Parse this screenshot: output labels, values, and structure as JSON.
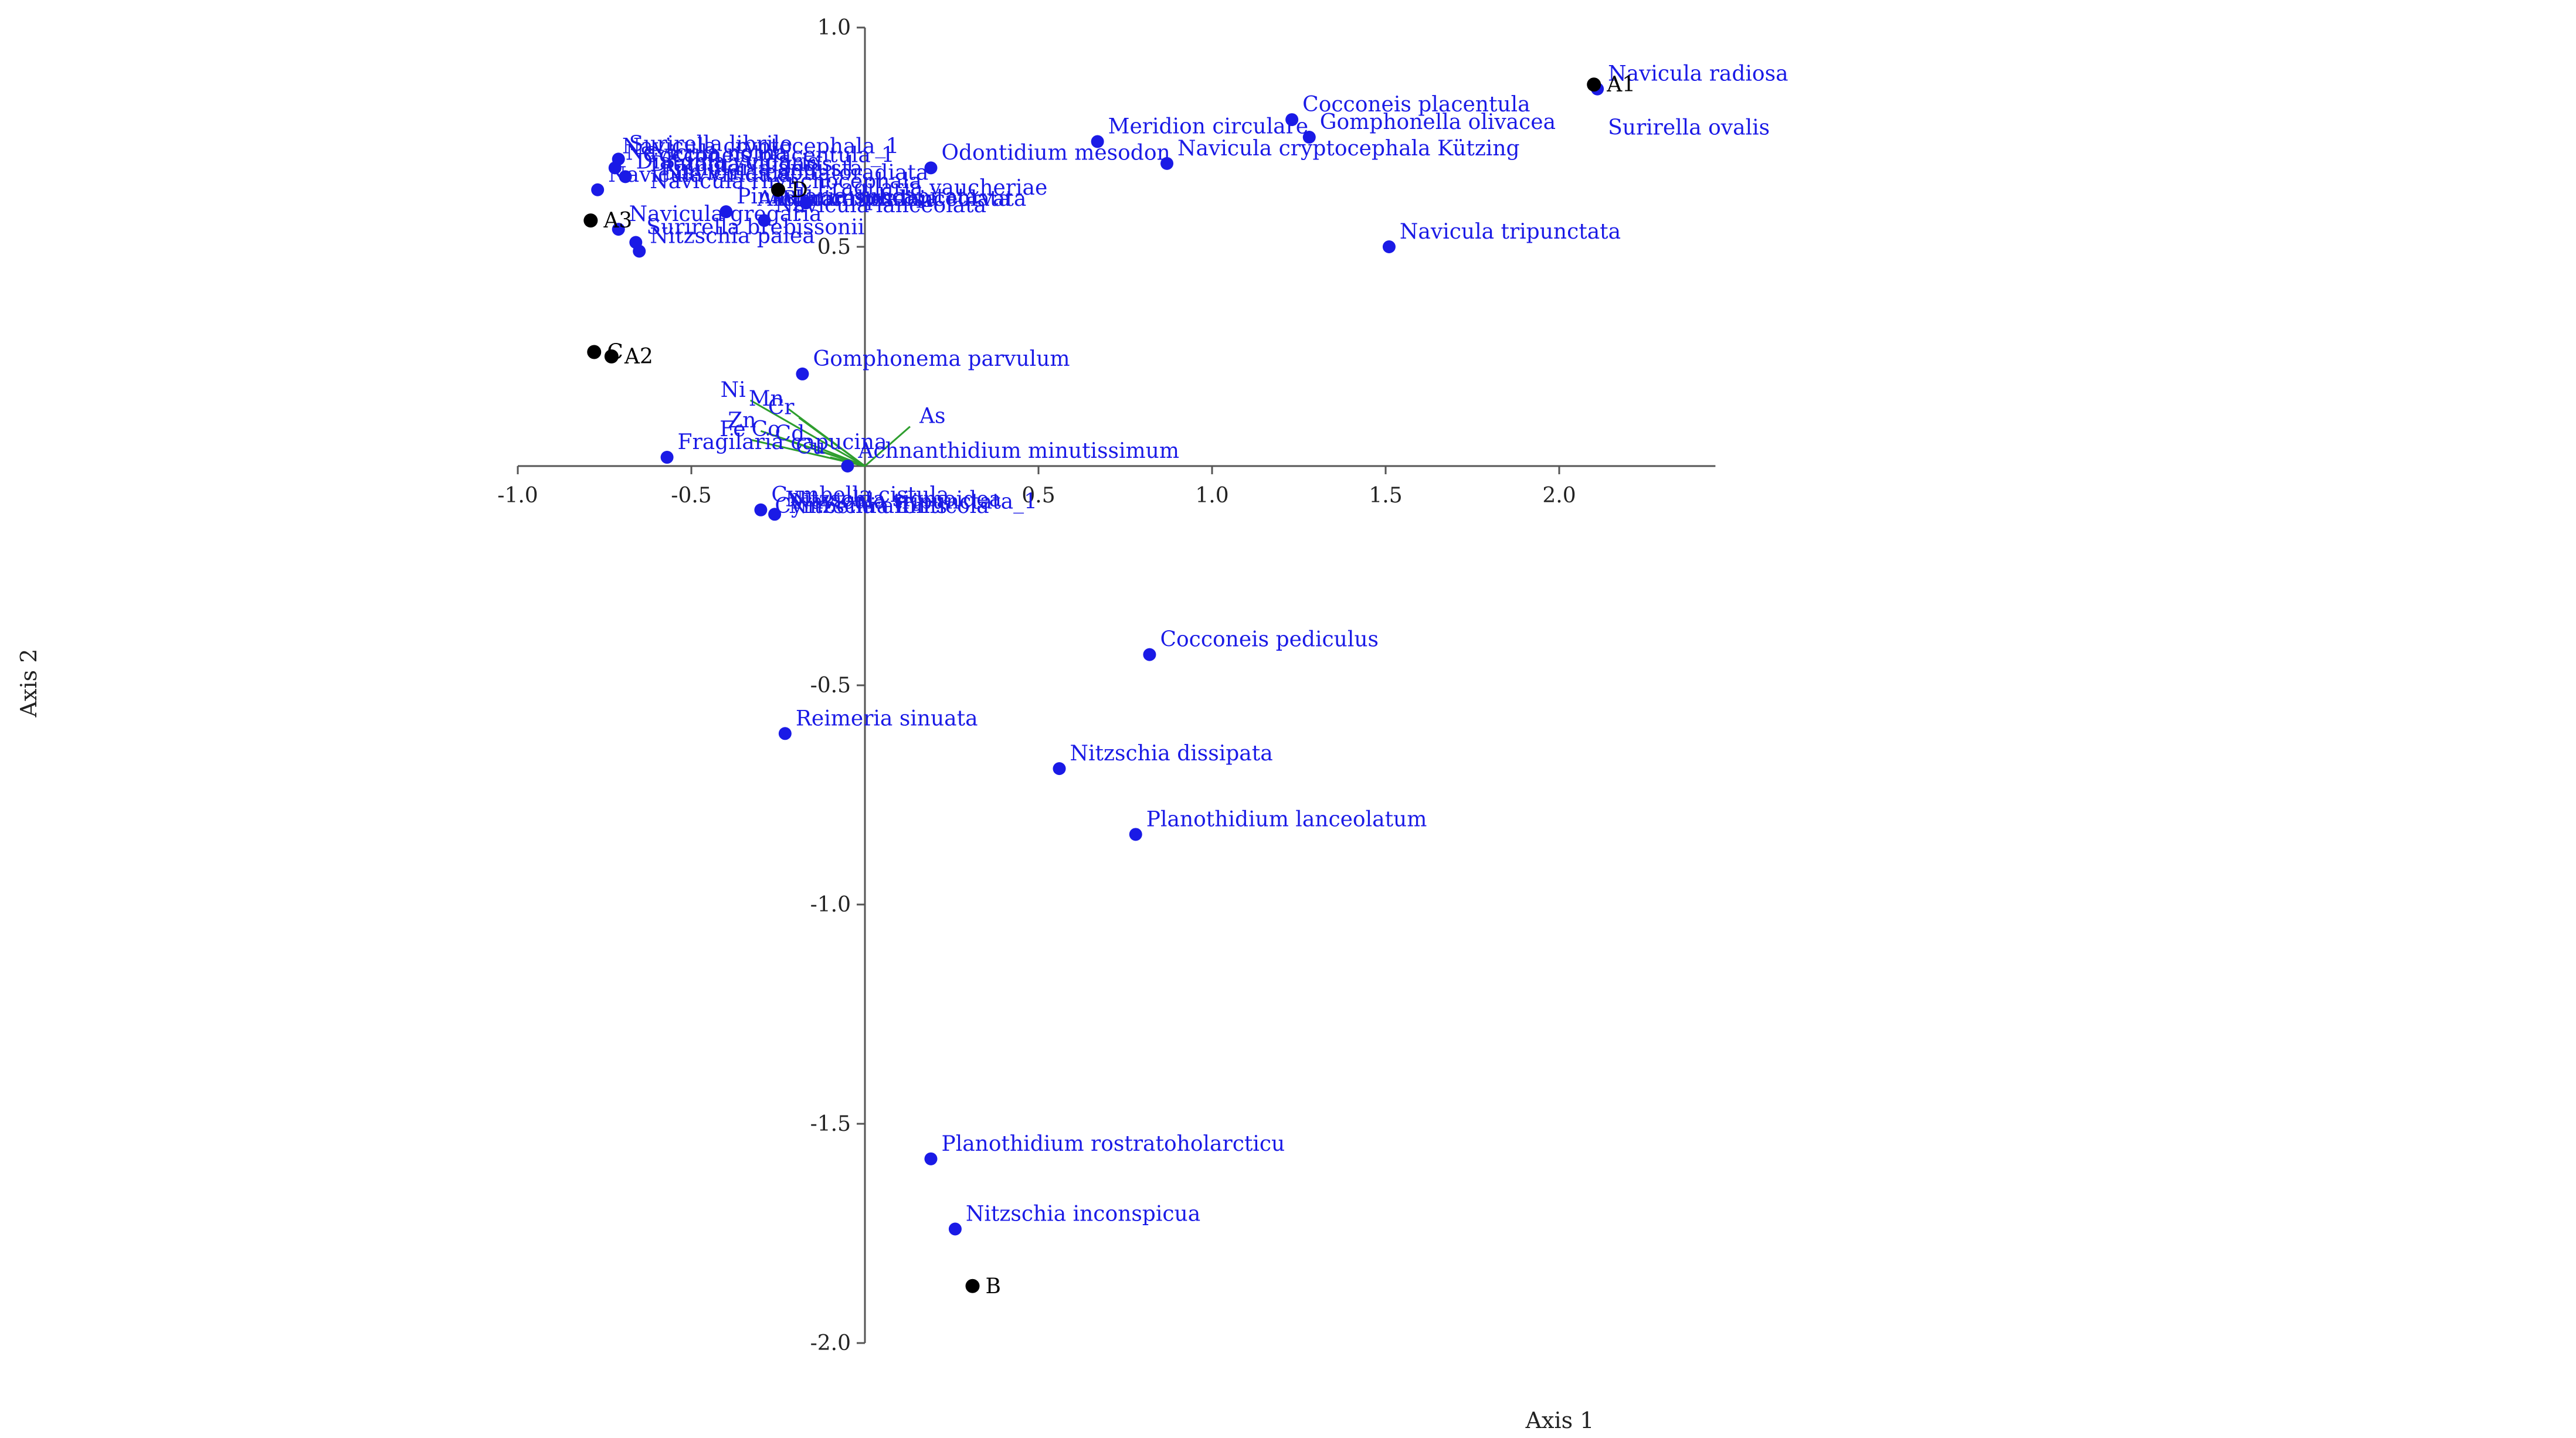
{
  "chart_data": {
    "type": "scatter",
    "title": "",
    "xlabel": "Axis 1",
    "ylabel": "Axis 2",
    "xlim": [
      -1.0,
      2.45
    ],
    "ylim": [
      -2.0,
      1.0
    ],
    "x_ticks": [
      -1.0,
      -0.5,
      0.5,
      1.0,
      1.5,
      2.0
    ],
    "x_tick_labels": [
      "-1.0",
      "-0.5",
      "0.5",
      "1.0",
      "1.5",
      "2.0"
    ],
    "y_ticks": [
      1.0,
      0.5,
      -0.5,
      -1.0,
      -1.5,
      -2.0
    ],
    "y_tick_labels": [
      "1.0",
      "0.5",
      "-0.5",
      "-1.0",
      "-1.5",
      "-2.0"
    ],
    "grid": false,
    "colors": {
      "species": "#1a1ae6",
      "sites": "#000000",
      "env": "#2e9e2e",
      "axis": "#555555"
    },
    "species": [
      {
        "name": "Navicula radiosa",
        "x": 2.11,
        "y": 0.86
      },
      {
        "name": "Surirella ovalis",
        "x": 2.11,
        "y": 0.86
      },
      {
        "name": "Cocconeis placentula",
        "x": 1.23,
        "y": 0.79
      },
      {
        "name": "Gomphonella olivacea",
        "x": 1.28,
        "y": 0.75
      },
      {
        "name": "Meridion circulare",
        "x": 0.67,
        "y": 0.74
      },
      {
        "name": "Navicula cryptocephala Kützing",
        "x": 0.87,
        "y": 0.69
      },
      {
        "name": "Odontidium mesodon",
        "x": 0.19,
        "y": 0.68
      },
      {
        "name": "Navicula tripunctata",
        "x": 1.51,
        "y": 0.5
      },
      {
        "name": "Fragilaria vaucheriae",
        "x": -0.17,
        "y": 0.6
      },
      {
        "name": "Navicula lanceolata",
        "x": -0.29,
        "y": 0.56
      },
      {
        "name": "Surirella librile",
        "x": -0.71,
        "y": 0.7
      },
      {
        "name": "Navicula notha",
        "x": -0.72,
        "y": 0.68
      },
      {
        "name": "Diatoma vulgaris",
        "x": -0.69,
        "y": 0.66
      },
      {
        "name": "Navicula viridula",
        "x": -0.77,
        "y": 0.63
      },
      {
        "name": "Pinnularia subcapitata",
        "x": -0.4,
        "y": 0.58
      },
      {
        "name": "Navicula gregaria",
        "x": -0.71,
        "y": 0.54
      },
      {
        "name": "Surirella brebissonii",
        "x": -0.66,
        "y": 0.51
      },
      {
        "name": "Nitzschia palea",
        "x": -0.65,
        "y": 0.49
      },
      {
        "name": "Gomphonema parvulum",
        "x": -0.18,
        "y": 0.21
      },
      {
        "name": "Fragilaria capucina",
        "x": -0.57,
        "y": 0.02
      },
      {
        "name": "Achnanthidium minutissimum",
        "x": -0.05,
        "y": 0.0
      },
      {
        "name": "Cymbella cistula",
        "x": -0.3,
        "y": -0.1
      },
      {
        "name": "Nitzschia sigmoidea",
        "x": -0.26,
        "y": -0.11
      },
      {
        "name": "Cocconeis pediculus",
        "x": 0.82,
        "y": -0.43
      },
      {
        "name": "Reimeria sinuata",
        "x": -0.23,
        "y": -0.61
      },
      {
        "name": "Nitzschia dissipata",
        "x": 0.56,
        "y": -0.69
      },
      {
        "name": "Planothidium lanceolatum",
        "x": 0.78,
        "y": -0.84
      },
      {
        "name": "Planothidium rostratoholarcticu",
        "x": 0.19,
        "y": -1.58
      },
      {
        "name": "Nitzschia inconspicua",
        "x": 0.26,
        "y": -1.74
      }
    ],
    "species_overlap_labels": [
      {
        "text": "Navicula cryptocephala_1",
        "x": -0.73,
        "y": 0.7
      },
      {
        "text": "Cocconeis placentula_1",
        "x": -0.67,
        "y": 0.68
      },
      {
        "text": "Diatoma vulgaris_1",
        "x": -0.65,
        "y": 0.66
      },
      {
        "text": "Pinnularia angusta",
        "x": -0.62,
        "y": 0.65
      },
      {
        "text": "Navicula capitatoradiata",
        "x": -0.61,
        "y": 0.64
      },
      {
        "text": "Navicula rhynchocephala",
        "x": -0.65,
        "y": 0.62
      },
      {
        "text": "Amphora ovalis",
        "x": -0.34,
        "y": 0.58
      },
      {
        "text": "Achnanthes lanceolata",
        "x": -0.31,
        "y": 0.58
      },
      {
        "text": "Rhoicosphenia curvata",
        "x": -0.27,
        "y": 0.58
      },
      {
        "text": "Cymbella affinis",
        "x": -0.29,
        "y": -0.12
      },
      {
        "text": "Nitzschia fonticola",
        "x": -0.25,
        "y": -0.12
      },
      {
        "text": "Navicula tripunctata_1",
        "x": -0.24,
        "y": -0.11
      }
    ],
    "sites": [
      {
        "name": "A1",
        "x": 2.1,
        "y": 0.87
      },
      {
        "name": "A2",
        "x": -0.73,
        "y": 0.25
      },
      {
        "name": "A3",
        "x": -0.79,
        "y": 0.56
      },
      {
        "name": "B",
        "x": 0.31,
        "y": -1.87
      },
      {
        "name": "C",
        "x": -0.78,
        "y": 0.26
      },
      {
        "name": "D",
        "x": -0.25,
        "y": 0.63
      }
    ],
    "env_vectors": [
      {
        "name": "As",
        "x": 0.13,
        "y": 0.09
      },
      {
        "name": "Ni",
        "x": -0.33,
        "y": 0.15
      },
      {
        "name": "Mn",
        "x": -0.22,
        "y": 0.13
      },
      {
        "name": "Cr",
        "x": -0.19,
        "y": 0.11
      },
      {
        "name": "Zn",
        "x": -0.3,
        "y": 0.08
      },
      {
        "name": "Fe",
        "x": -0.33,
        "y": 0.06
      },
      {
        "name": "Co",
        "x": -0.23,
        "y": 0.06
      },
      {
        "name": "Cd",
        "x": -0.16,
        "y": 0.05
      },
      {
        "name": "Cu",
        "x": -0.1,
        "y": 0.02
      }
    ]
  }
}
